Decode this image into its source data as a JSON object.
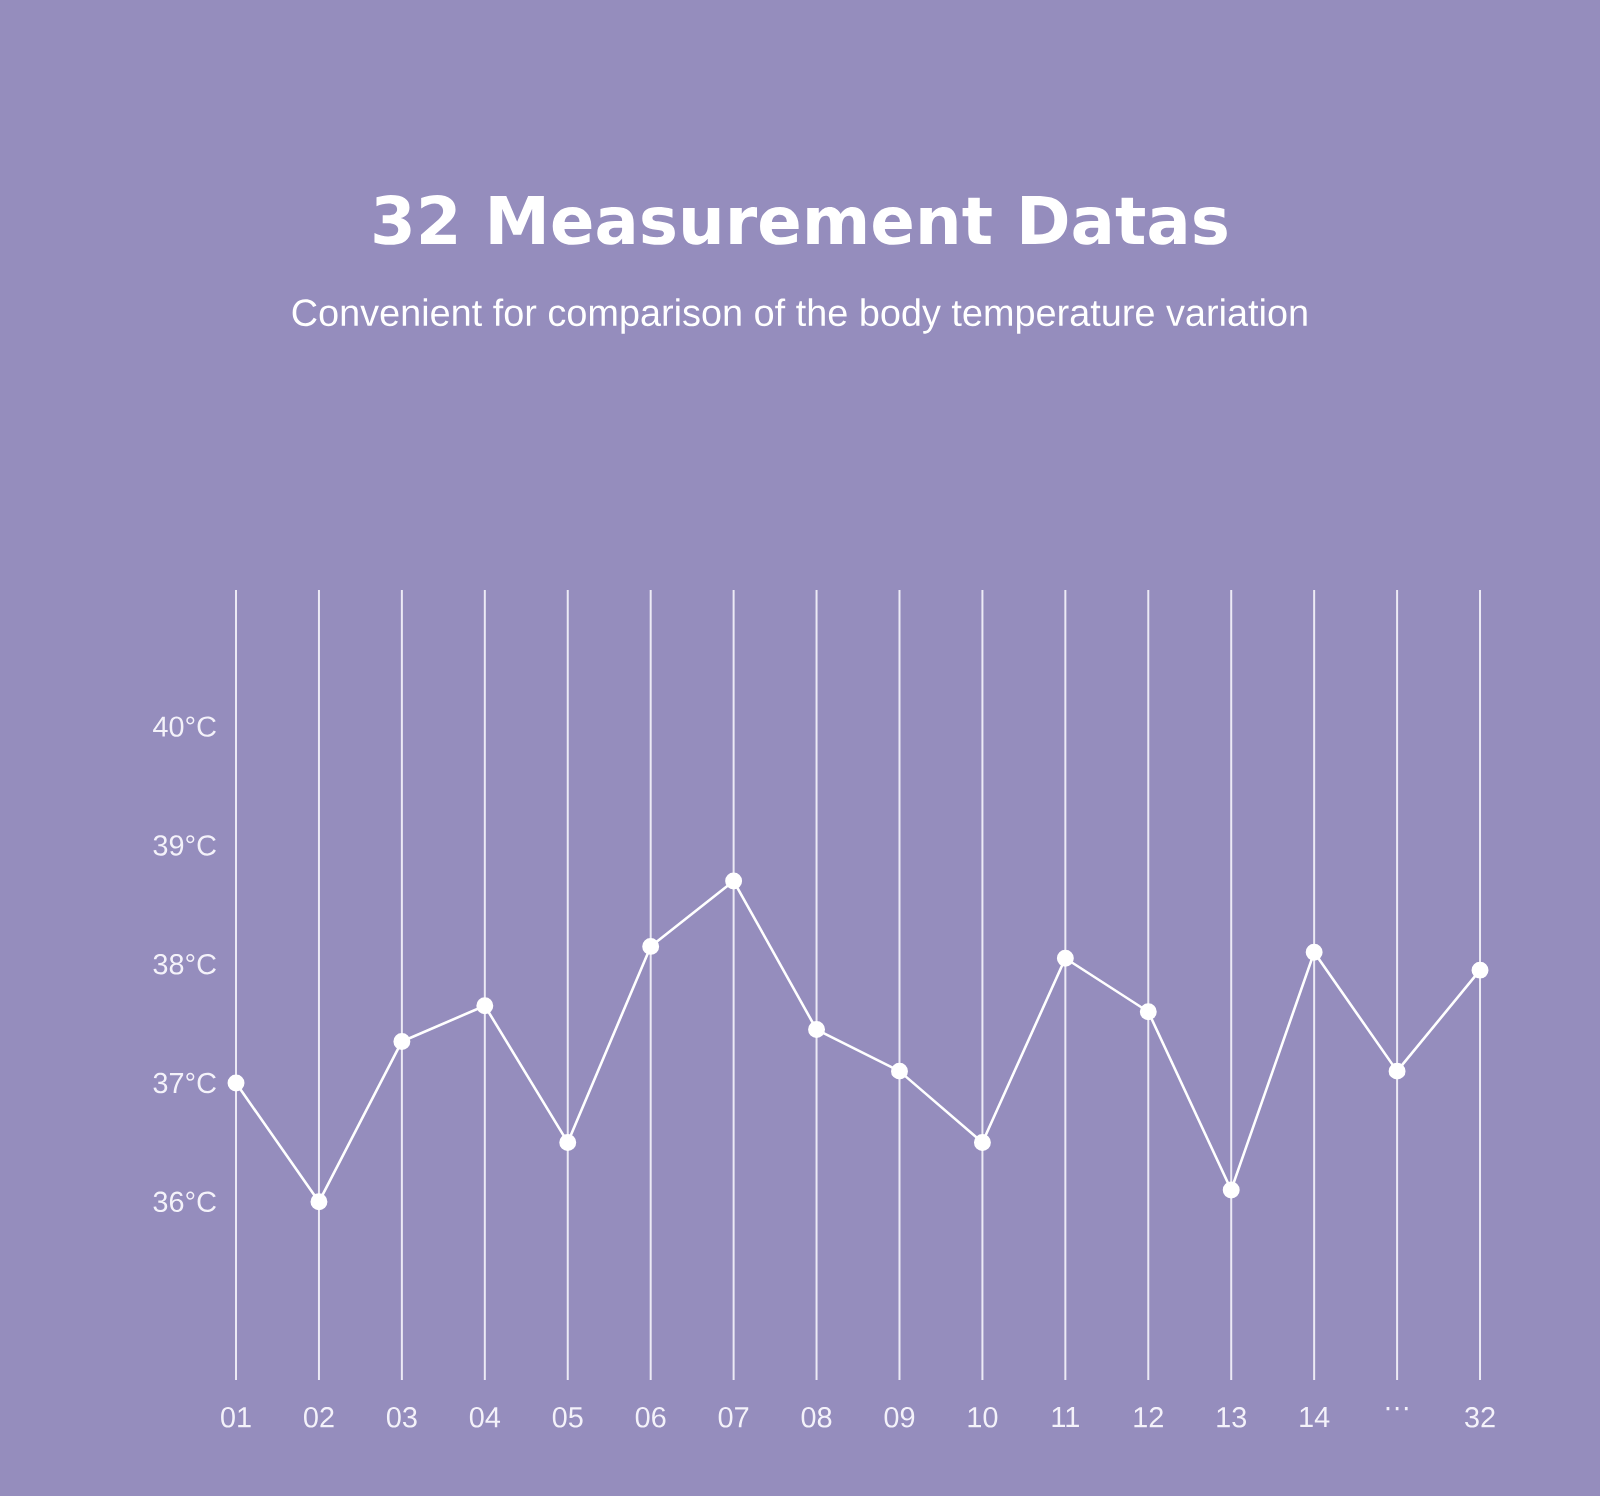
{
  "chart_data": {
    "type": "line",
    "title": "32 Measurement Datas",
    "subtitle": "Convenient for comparison of the body temperature variation",
    "categories": [
      "01",
      "02",
      "03",
      "04",
      "05",
      "06",
      "07",
      "08",
      "09",
      "10",
      "11",
      "12",
      "13",
      "14",
      "…",
      "32"
    ],
    "values": [
      37.0,
      36.0,
      37.35,
      37.65,
      36.5,
      38.15,
      38.7,
      37.45,
      37.1,
      36.5,
      38.05,
      37.6,
      36.1,
      38.1,
      37.1,
      37.95
    ],
    "color": "#ffffff",
    "marker": "circle",
    "grid": "x",
    "ylim": [
      34.5,
      41.15
    ],
    "yticks": [
      {
        "value": 36,
        "label": "36°C"
      },
      {
        "value": 37,
        "label": "37°C"
      },
      {
        "value": 38,
        "label": "38°C"
      },
      {
        "value": 39,
        "label": "39°C"
      },
      {
        "value": 40,
        "label": "40°C"
      }
    ]
  }
}
